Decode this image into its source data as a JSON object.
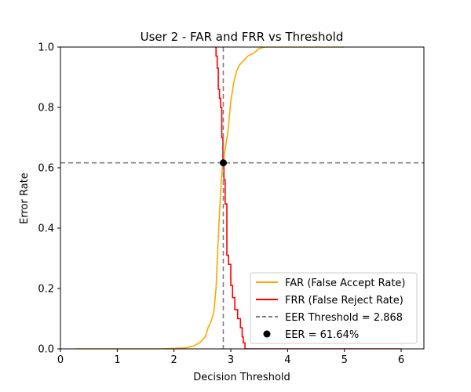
{
  "chart_data": {
    "type": "line",
    "title": "User 2 - FAR and FRR vs Threshold",
    "xlabel": "Decision Threshold",
    "ylabel": "Error Rate",
    "xlim": [
      0,
      6.4
    ],
    "ylim": [
      0,
      1.0
    ],
    "xticks": [
      0,
      1,
      2,
      3,
      4,
      5,
      6
    ],
    "yticks": [
      0.0,
      0.2,
      0.4,
      0.6,
      0.8,
      1.0
    ],
    "xtick_labels": [
      "0",
      "1",
      "2",
      "3",
      "4",
      "5",
      "6"
    ],
    "ytick_labels": [
      "0.0",
      "0.2",
      "0.4",
      "0.6",
      "0.8",
      "1.0"
    ],
    "grid": false,
    "legend_position": "lower-right",
    "series": [
      {
        "name": "FAR (False Accept Rate)",
        "color": "#ffa500",
        "style": "solid",
        "x": [
          0.27,
          1.0,
          1.8,
          2.2,
          2.35,
          2.45,
          2.55,
          2.6,
          2.65,
          2.7,
          2.74,
          2.77,
          2.8,
          2.83,
          2.85,
          2.868,
          2.9,
          2.95,
          3.0,
          3.05,
          3.1,
          3.15,
          3.2,
          3.3,
          3.4,
          3.5,
          3.6,
          3.7,
          3.8,
          4.0,
          4.5,
          5.0
        ],
        "y": [
          0.0,
          0.0,
          0.0,
          0.003,
          0.01,
          0.02,
          0.04,
          0.07,
          0.09,
          0.12,
          0.2,
          0.33,
          0.45,
          0.55,
          0.6,
          0.6164,
          0.66,
          0.72,
          0.82,
          0.88,
          0.92,
          0.94,
          0.95,
          0.97,
          0.98,
          0.995,
          1.0,
          1.0,
          1.0,
          1.0,
          1.0,
          1.0
        ]
      },
      {
        "name": "FRR (False Reject Rate)",
        "color": "#ff0000",
        "style": "step",
        "x": [
          2.72,
          2.74,
          2.76,
          2.78,
          2.8,
          2.82,
          2.84,
          2.86,
          2.868,
          2.88,
          2.9,
          2.93,
          2.96,
          3.0,
          3.03,
          3.07,
          3.12,
          3.17,
          3.2,
          3.22,
          3.25,
          3.3,
          3.5,
          4.0,
          5.0,
          6.0
        ],
        "y": [
          1.0,
          0.97,
          0.93,
          0.86,
          0.83,
          0.8,
          0.7,
          0.63,
          0.6164,
          0.56,
          0.48,
          0.31,
          0.28,
          0.21,
          0.17,
          0.13,
          0.1,
          0.07,
          0.04,
          0.02,
          0.0,
          0.0,
          0.0,
          0.0,
          0.0,
          0.0
        ]
      }
    ],
    "eer_threshold": {
      "name": "EER Threshold = 2.868",
      "value": 2.868,
      "color": "#808080",
      "style": "dashed"
    },
    "eer_rate_line": {
      "value": 0.6164,
      "color": "#808080",
      "style": "dashed"
    },
    "eer_point": {
      "name": "EER = 61.64%",
      "x": 2.868,
      "y": 0.6164,
      "color": "#000000"
    }
  }
}
